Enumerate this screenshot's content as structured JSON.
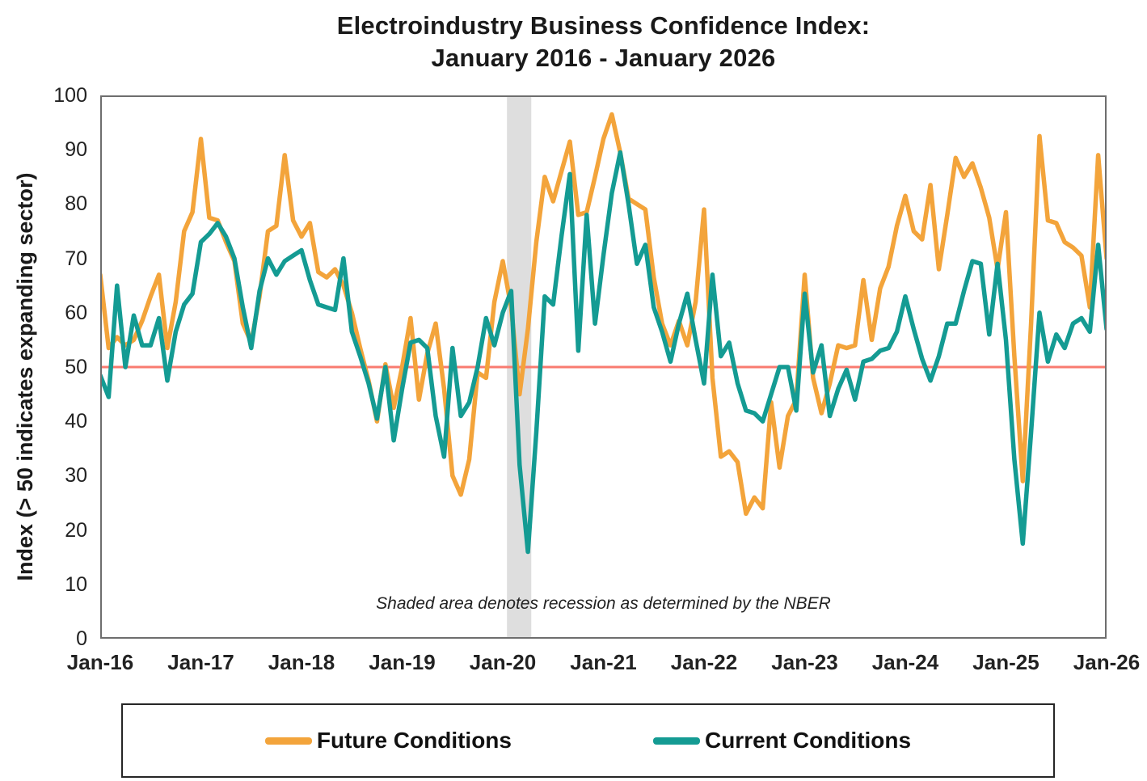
{
  "title": {
    "line1": "Electroindustry Business Confidence Index:",
    "line2": "January 2016 - January 2026"
  },
  "y_axis": {
    "label": "Index (> 50 indicates expanding sector)",
    "ticks": [
      0,
      10,
      20,
      30,
      40,
      50,
      60,
      70,
      80,
      90,
      100
    ]
  },
  "x_axis": {
    "tick_labels": [
      "Jan-16",
      "Jan-17",
      "Jan-18",
      "Jan-19",
      "Jan-20",
      "Jan-21",
      "Jan-22",
      "Jan-23",
      "Jan-24",
      "Jan-25",
      "Jan-26"
    ]
  },
  "annotation": "Shaded area denotes recession as determined by the NBER",
  "legend": [
    {
      "label": "Future Conditions",
      "color": "#F3A43B"
    },
    {
      "label": "Current Conditions",
      "color": "#149B93"
    }
  ],
  "colors": {
    "future": "#F3A43B",
    "current": "#149B93",
    "reference_line": "#F97B70",
    "recession_band": "#DEDEDE",
    "plot_border": "#6E6E6E",
    "text": "#1A1A1A"
  },
  "chart_data": {
    "type": "line",
    "title": "Electroindustry Business Confidence Index: January 2016 - January 2026",
    "ylabel": "Index (> 50 indicates expanding sector)",
    "ylim": [
      0,
      100
    ],
    "grid": false,
    "legend_position": "bottom",
    "x_start": "Jan-16",
    "x_end": "Jan-26",
    "months_total": 121,
    "x_tick_labels": [
      "Jan-16",
      "Jan-17",
      "Jan-18",
      "Jan-19",
      "Jan-20",
      "Jan-21",
      "Jan-22",
      "Jan-23",
      "Jan-24",
      "Jan-25",
      "Jan-26"
    ],
    "reference_line": {
      "value": 50,
      "color": "#F97B70"
    },
    "recession_band": {
      "from_label": "Feb-20",
      "to_label": "Apr-20",
      "from_month_index": 48.5,
      "to_month_index": 51.4,
      "color": "#DEDEDE",
      "note": "Shaded area denotes recession as determined by the NBER"
    },
    "series": [
      {
        "name": "Future Conditions",
        "color": "#F3A43B",
        "values": [
          67,
          53.5,
          55.5,
          54,
          55,
          58.5,
          63,
          67,
          53.5,
          62,
          75,
          78.5,
          92,
          77.5,
          77,
          73,
          69.5,
          58,
          54.5,
          63,
          75,
          76,
          89,
          77,
          74,
          76.5,
          67.5,
          66.5,
          68,
          65,
          60,
          53.5,
          47.5,
          40,
          50.5,
          42.5,
          50,
          59,
          44,
          52.5,
          58,
          46,
          30,
          26.5,
          33,
          49,
          48,
          62,
          69.5,
          61,
          45,
          57,
          73,
          85,
          80.5,
          86,
          91.5,
          78,
          78.5,
          85,
          92,
          96.5,
          89.5,
          81,
          80,
          79,
          66.5,
          58,
          54,
          58.5,
          54,
          62,
          79,
          48,
          33.5,
          34.5,
          32.5,
          23,
          26,
          24,
          43.5,
          31.5,
          41,
          44,
          67,
          48,
          41.5,
          47,
          54,
          53.5,
          54,
          66,
          55,
          64.5,
          68.5,
          76,
          81.5,
          75,
          73.5,
          83.5,
          68,
          78,
          88.5,
          85,
          87.5,
          83,
          77.5,
          68,
          78.5,
          52,
          29,
          58,
          92.5,
          77,
          76.5,
          73,
          72,
          70.5,
          61,
          89,
          70
        ]
      },
      {
        "name": "Current Conditions",
        "color": "#149B93",
        "values": [
          48.5,
          44.5,
          65,
          50,
          59.5,
          54,
          54,
          59,
          47.5,
          56.5,
          61.5,
          63.5,
          73,
          74.5,
          76.5,
          74,
          70,
          61,
          53.5,
          64,
          70,
          67,
          69.5,
          70.5,
          71.5,
          66,
          61.5,
          61,
          60.5,
          70,
          56.5,
          52,
          47,
          40.5,
          50,
          36.5,
          46,
          54.5,
          55,
          53.5,
          41,
          33.5,
          53.5,
          41,
          43.5,
          50,
          59,
          54,
          60,
          64,
          32,
          16,
          38,
          63,
          61.5,
          74,
          85.5,
          53,
          78,
          58,
          70.5,
          82,
          89.5,
          80,
          69,
          72.5,
          61,
          56.5,
          51,
          58,
          63.5,
          55,
          47,
          67,
          52,
          54.5,
          47,
          42,
          41.5,
          40,
          45,
          50,
          50,
          42,
          63.5,
          49,
          54,
          41,
          46,
          49.5,
          44,
          51,
          51.5,
          53,
          53.5,
          56.5,
          63,
          57,
          51.5,
          47.5,
          52,
          58,
          58,
          64,
          69.5,
          69,
          56,
          69,
          55,
          33,
          17.5,
          38,
          60,
          51,
          56,
          53.5,
          58,
          59,
          56.5,
          72.5,
          57
        ]
      }
    ]
  }
}
